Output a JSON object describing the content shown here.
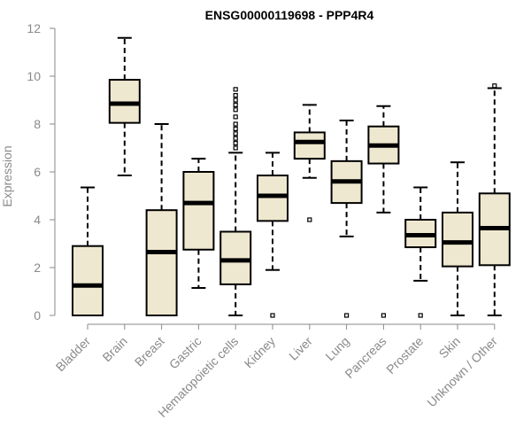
{
  "chart_data": {
    "type": "box",
    "title": "ENSG00000119698 - PPP4R4",
    "xlabel": "",
    "ylabel": "Expression",
    "ylim": [
      0,
      12
    ],
    "yticks": [
      0,
      2,
      4,
      6,
      8,
      10,
      12
    ],
    "box_fill": "#efe8d0",
    "categories": [
      "Bladder",
      "Brain",
      "Breast",
      "Gastric",
      "Hematopoietic cells",
      "Kidney",
      "Liver",
      "Lung",
      "Pancreas",
      "Prostate",
      "Skin",
      "Unknown / Other"
    ],
    "boxes": [
      {
        "min": 0.0,
        "q1": 0.0,
        "median": 1.25,
        "q3": 2.9,
        "max": 5.35,
        "outliers": []
      },
      {
        "min": 5.85,
        "q1": 8.05,
        "median": 8.85,
        "q3": 9.85,
        "max": 11.6,
        "outliers": []
      },
      {
        "min": 0.0,
        "q1": 0.0,
        "median": 2.65,
        "q3": 4.4,
        "max": 8.0,
        "outliers": []
      },
      {
        "min": 1.15,
        "q1": 2.75,
        "median": 4.7,
        "q3": 6.0,
        "max": 6.55,
        "outliers": []
      },
      {
        "min": 0.0,
        "q1": 1.3,
        "median": 2.3,
        "q3": 3.5,
        "max": 6.8,
        "outliers": [
          7.0,
          7.2,
          7.4,
          7.6,
          7.8,
          8.0,
          8.3,
          8.6,
          8.8,
          9.0,
          9.2,
          9.45
        ]
      },
      {
        "min": 1.9,
        "q1": 3.95,
        "median": 5.0,
        "q3": 5.85,
        "max": 6.8,
        "outliers": [
          0.0
        ]
      },
      {
        "min": 5.75,
        "q1": 6.55,
        "median": 7.25,
        "q3": 7.65,
        "max": 8.8,
        "outliers": [
          4.0
        ]
      },
      {
        "min": 3.3,
        "q1": 4.7,
        "median": 5.6,
        "q3": 6.45,
        "max": 8.15,
        "outliers": [
          0.0
        ]
      },
      {
        "min": 4.3,
        "q1": 6.35,
        "median": 7.1,
        "q3": 7.9,
        "max": 8.75,
        "outliers": [
          0.0
        ]
      },
      {
        "min": 1.45,
        "q1": 2.85,
        "median": 3.35,
        "q3": 4.0,
        "max": 5.35,
        "outliers": [
          0.0
        ]
      },
      {
        "min": 0.0,
        "q1": 2.05,
        "median": 3.05,
        "q3": 4.3,
        "max": 6.4,
        "outliers": []
      },
      {
        "min": 0.0,
        "q1": 2.1,
        "median": 3.65,
        "q3": 5.1,
        "max": 9.5,
        "outliers": [
          9.6
        ]
      }
    ]
  }
}
